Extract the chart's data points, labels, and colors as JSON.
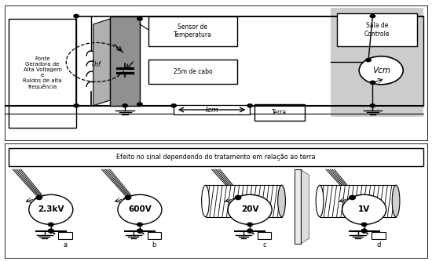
{
  "bg_color": "#ffffff",
  "top": {
    "fonte_text": "Fonte\nGeradora de\nAlta Voltagem\ne\nRuídos de alta\nfrequência",
    "sensor_text": "Sensor de\nTemperatura",
    "cabo_text": "25m de cabo",
    "sala_text": "Sala de\nControle",
    "terra_text": "Terra",
    "icm_text": "Icm",
    "vcm_text": "Vcm",
    "ihf_text": "I_hf"
  },
  "bottom": {
    "banner": "Efeito no sinal dependendo do tratamento em relação ao terra",
    "voltages": [
      "2.3kV",
      "600V",
      "20V",
      "1V"
    ],
    "labels": [
      "a",
      "b",
      "c",
      "d"
    ]
  }
}
